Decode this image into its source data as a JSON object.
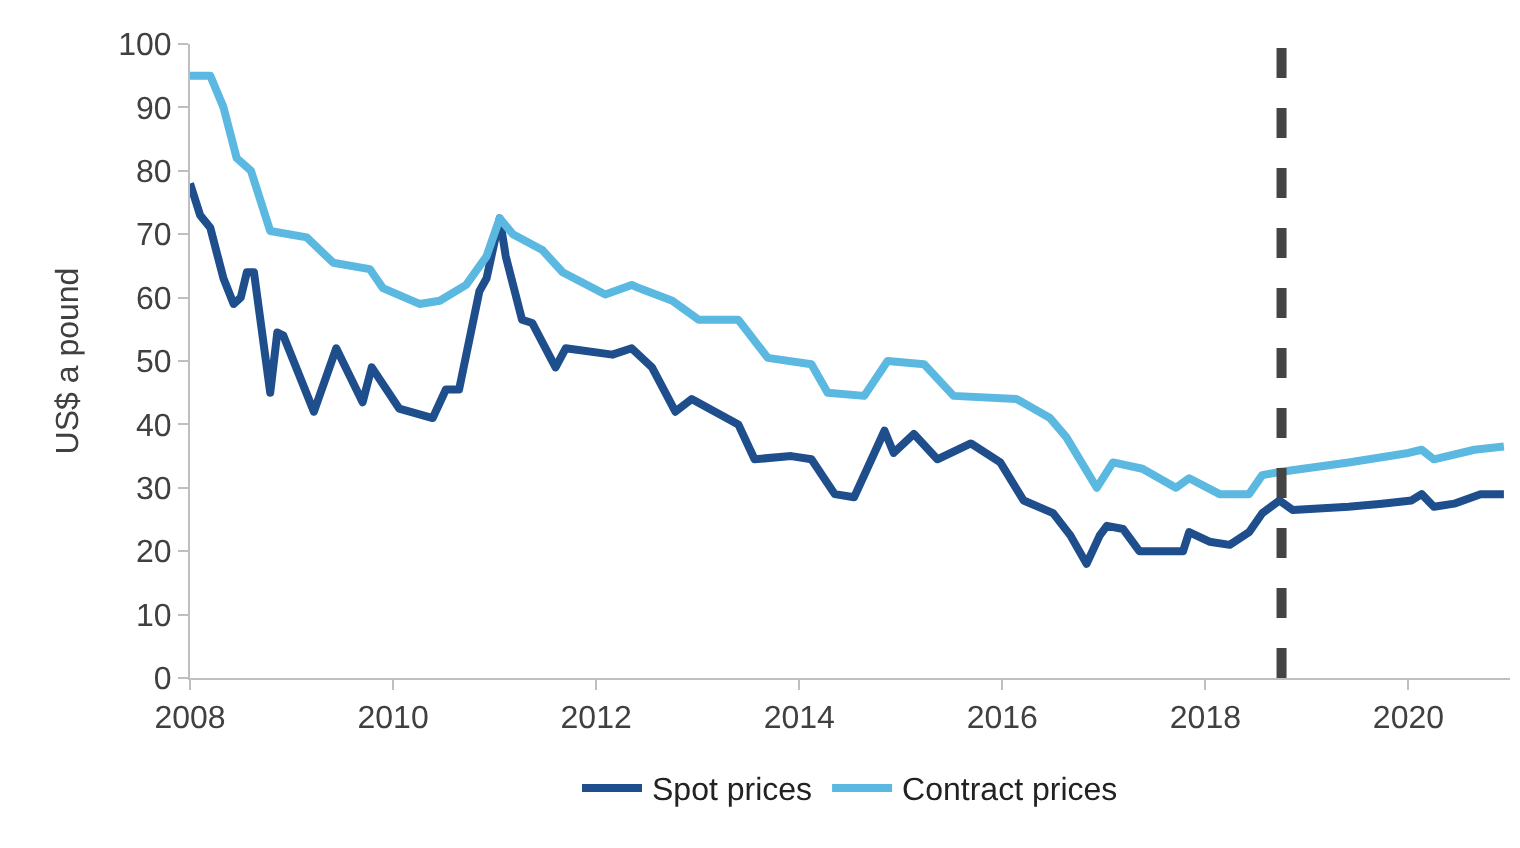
{
  "chart_data": {
    "type": "line",
    "ylabel": "US$ a pound",
    "xlim": [
      2008,
      2021
    ],
    "xticks": [
      2008,
      2010,
      2012,
      2014,
      2016,
      2018,
      2020
    ],
    "ylim": [
      0,
      100
    ],
    "yticks": [
      0,
      10,
      20,
      30,
      40,
      50,
      60,
      70,
      80,
      90,
      100
    ],
    "legend": "bottom",
    "marker": "none",
    "line_style": "solid",
    "series": [
      {
        "name": "Spot prices",
        "color": "#1f4e8c",
        "x": [
          2008.0,
          2008.1,
          2008.2,
          2008.33,
          2008.43,
          2008.5,
          2008.56,
          2008.63,
          2008.79,
          2008.86,
          2008.92,
          2009.22,
          2009.44,
          2009.7,
          2009.79,
          2010.06,
          2010.39,
          2010.52,
          2010.65,
          2010.85,
          2010.92,
          2011.05,
          2011.11,
          2011.27,
          2011.37,
          2011.6,
          2011.7,
          2012.16,
          2012.35,
          2012.55,
          2012.78,
          2012.94,
          2013.4,
          2013.56,
          2013.92,
          2014.12,
          2014.35,
          2014.54,
          2014.84,
          2014.93,
          2015.13,
          2015.36,
          2015.69,
          2015.98,
          2016.21,
          2016.5,
          2016.67,
          2016.83,
          2016.96,
          2017.03,
          2017.19,
          2017.35,
          2017.78,
          2017.84,
          2018.04,
          2018.24,
          2018.43,
          2018.56,
          2018.73,
          2018.86,
          2019.41,
          2019.74,
          2020.03,
          2020.13,
          2020.25,
          2020.45,
          2020.71,
          2020.94
        ],
        "values": [
          78,
          73,
          71,
          63,
          59,
          60,
          64,
          64,
          45,
          54.5,
          54,
          42,
          52,
          43.5,
          49,
          42.5,
          41,
          45.5,
          45.5,
          61,
          63,
          72.5,
          66.5,
          56.5,
          56,
          49,
          52,
          51,
          52,
          49,
          42,
          44,
          40,
          34.5,
          35,
          34.5,
          29,
          28.5,
          39,
          35.5,
          38.5,
          34.5,
          37,
          34,
          28,
          26,
          22.5,
          18,
          22.5,
          24,
          23.5,
          20,
          20,
          23,
          21.5,
          21,
          23,
          26,
          28,
          26.5,
          27,
          27.5,
          28,
          29,
          27,
          27.5,
          29,
          29
        ]
      },
      {
        "name": "Contract prices",
        "color": "#5bb8e0",
        "x": [
          2008.0,
          2008.2,
          2008.33,
          2008.46,
          2008.6,
          2008.79,
          2009.15,
          2009.41,
          2009.77,
          2009.9,
          2010.26,
          2010.46,
          2010.72,
          2010.92,
          2011.05,
          2011.18,
          2011.47,
          2011.67,
          2012.09,
          2012.35,
          2012.42,
          2012.75,
          2013.01,
          2013.4,
          2013.69,
          2014.12,
          2014.28,
          2014.64,
          2014.87,
          2015.23,
          2015.52,
          2016.14,
          2016.47,
          2016.63,
          2016.93,
          2017.09,
          2017.38,
          2017.71,
          2017.84,
          2018.14,
          2018.43,
          2018.56,
          2018.73,
          2019.41,
          2020.0,
          2020.13,
          2020.25,
          2020.65,
          2020.94
        ],
        "values": [
          95,
          95,
          90,
          82,
          80,
          70.5,
          69.5,
          65.5,
          64.5,
          61.5,
          59,
          59.5,
          62,
          66.5,
          72.5,
          70,
          67.5,
          64,
          60.5,
          62,
          61.5,
          59.5,
          56.5,
          56.5,
          50.5,
          49.5,
          45,
          44.5,
          50,
          49.5,
          44.5,
          44,
          41,
          38,
          30,
          34,
          33,
          30,
          31.5,
          29,
          29,
          32,
          32.5,
          34,
          35.5,
          36,
          34.5,
          36,
          36.5
        ]
      }
    ],
    "ref_lines": [
      {
        "axis": "x",
        "value": 2018.75,
        "color": "#444444",
        "line_style": "dashed"
      }
    ]
  }
}
